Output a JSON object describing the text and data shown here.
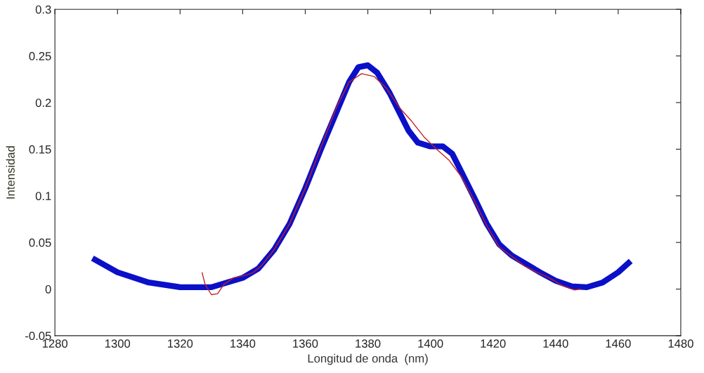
{
  "chart_data": {
    "type": "line",
    "xlabel": "Longitud de onda  (nm)",
    "ylabel": "Intensidad",
    "xlim": [
      1280,
      1480
    ],
    "xticks": [
      1280,
      1300,
      1320,
      1340,
      1360,
      1380,
      1400,
      1420,
      1440,
      1460,
      1480
    ],
    "ylim": [
      -0.05,
      0.3
    ],
    "yticks": [
      -0.05,
      0,
      0.05,
      0.1,
      0.15,
      0.2,
      0.25,
      0.3
    ],
    "grid": false,
    "series": [
      {
        "color": "#0a10c8",
        "x": [
          1292,
          1300,
          1310,
          1320,
          1330,
          1340,
          1345,
          1350,
          1355,
          1360,
          1365,
          1370,
          1374,
          1377,
          1380,
          1383,
          1387,
          1390,
          1393,
          1396,
          1400,
          1404,
          1407,
          1410,
          1414,
          1418,
          1422,
          1426,
          1430,
          1435,
          1440,
          1445,
          1450,
          1455,
          1460,
          1464
        ],
        "values": [
          0.033,
          0.018,
          0.007,
          0.002,
          0.002,
          0.012,
          0.022,
          0.042,
          0.07,
          0.108,
          0.15,
          0.19,
          0.222,
          0.238,
          0.24,
          0.232,
          0.21,
          0.19,
          0.17,
          0.157,
          0.153,
          0.153,
          0.145,
          0.125,
          0.098,
          0.07,
          0.048,
          0.036,
          0.028,
          0.018,
          0.009,
          0.003,
          0.002,
          0.007,
          0.018,
          0.03
        ]
      },
      {
        "color": "#c42020",
        "x": [
          1327,
          1328,
          1330,
          1332,
          1334,
          1337,
          1340,
          1343,
          1346,
          1350,
          1355,
          1360,
          1365,
          1370,
          1374,
          1378,
          1382,
          1386,
          1390,
          1394,
          1398,
          1402,
          1406,
          1410,
          1414,
          1418,
          1422,
          1426,
          1430,
          1434,
          1438,
          1442,
          1446,
          1448
        ],
        "values": [
          0.018,
          0.005,
          -0.006,
          -0.005,
          0.005,
          0.012,
          0.014,
          0.017,
          0.025,
          0.042,
          0.07,
          0.108,
          0.152,
          0.195,
          0.222,
          0.231,
          0.228,
          0.215,
          0.195,
          0.18,
          0.163,
          0.15,
          0.138,
          0.12,
          0.095,
          0.068,
          0.045,
          0.035,
          0.025,
          0.018,
          0.012,
          0.004,
          -0.001,
          0.0
        ]
      }
    ]
  }
}
